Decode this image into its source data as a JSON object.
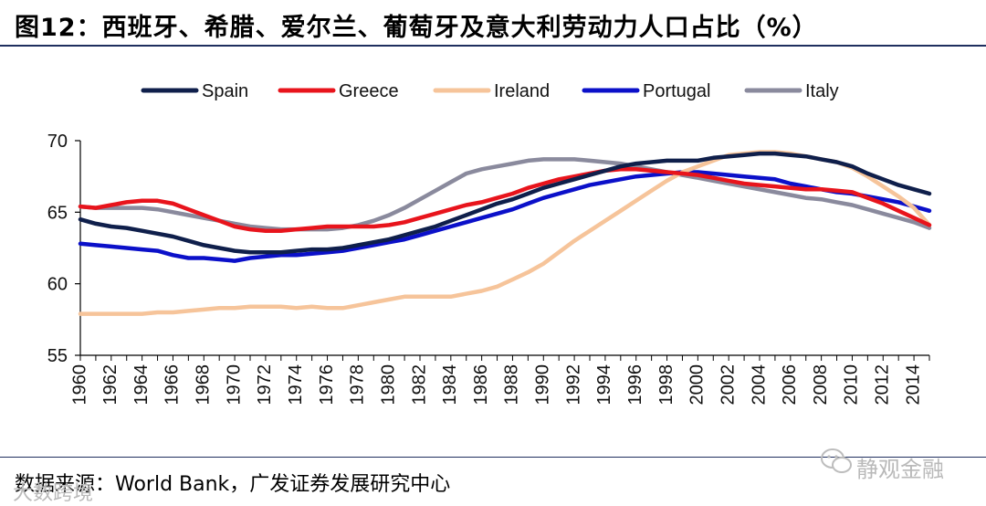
{
  "title": "图12：西班牙、希腊、爱尔兰、葡萄牙及意大利劳动力人口占比（%）",
  "source": "数据来源：World Bank，广发证券发展研究中心",
  "watermark_right": "静观金融",
  "watermark_left": "大数跨境",
  "chart_data": {
    "type": "line",
    "title": "",
    "xlabel": "",
    "ylabel": "",
    "ylim": [
      55,
      70
    ],
    "yticks": [
      55,
      60,
      65,
      70
    ],
    "x": [
      1960,
      1961,
      1962,
      1963,
      1964,
      1965,
      1966,
      1967,
      1968,
      1969,
      1970,
      1971,
      1972,
      1973,
      1974,
      1975,
      1976,
      1977,
      1978,
      1979,
      1980,
      1981,
      1982,
      1983,
      1984,
      1985,
      1986,
      1987,
      1988,
      1989,
      1990,
      1991,
      1992,
      1993,
      1994,
      1995,
      1996,
      1997,
      1998,
      1999,
      2000,
      2001,
      2002,
      2003,
      2004,
      2005,
      2006,
      2007,
      2008,
      2009,
      2010,
      2011,
      2012,
      2013,
      2014,
      2015
    ],
    "xticks": [
      1960,
      1962,
      1964,
      1966,
      1968,
      1970,
      1972,
      1974,
      1976,
      1978,
      1980,
      1982,
      1984,
      1986,
      1988,
      1990,
      1992,
      1994,
      1996,
      1998,
      2000,
      2002,
      2004,
      2006,
      2008,
      2010,
      2012,
      2014
    ],
    "legend_position": "top",
    "series": [
      {
        "name": "Spain",
        "color": "#0f1f4b",
        "values": [
          64.5,
          64.2,
          64.0,
          63.9,
          63.7,
          63.5,
          63.3,
          63.0,
          62.7,
          62.5,
          62.3,
          62.2,
          62.2,
          62.2,
          62.3,
          62.4,
          62.4,
          62.5,
          62.7,
          62.9,
          63.1,
          63.4,
          63.7,
          64.0,
          64.4,
          64.8,
          65.2,
          65.6,
          65.9,
          66.3,
          66.7,
          67.0,
          67.3,
          67.6,
          67.9,
          68.2,
          68.4,
          68.5,
          68.6,
          68.6,
          68.6,
          68.8,
          68.9,
          69.0,
          69.1,
          69.1,
          69.0,
          68.9,
          68.7,
          68.5,
          68.2,
          67.7,
          67.3,
          66.9,
          66.6,
          66.3
        ]
      },
      {
        "name": "Greece",
        "color": "#e8141c",
        "values": [
          65.4,
          65.3,
          65.5,
          65.7,
          65.8,
          65.8,
          65.6,
          65.2,
          64.8,
          64.4,
          64.0,
          63.8,
          63.7,
          63.7,
          63.8,
          63.9,
          64.0,
          64.0,
          64.0,
          64.0,
          64.1,
          64.3,
          64.6,
          64.9,
          65.2,
          65.5,
          65.7,
          66.0,
          66.3,
          66.7,
          67.0,
          67.3,
          67.5,
          67.7,
          67.9,
          68.0,
          68.0,
          67.9,
          67.8,
          67.7,
          67.6,
          67.4,
          67.2,
          67.0,
          66.9,
          66.8,
          66.7,
          66.6,
          66.6,
          66.5,
          66.4,
          66.0,
          65.6,
          65.1,
          64.6,
          64.1
        ]
      },
      {
        "name": "Ireland",
        "color": "#f6c49a",
        "values": [
          57.9,
          57.9,
          57.9,
          57.9,
          57.9,
          58.0,
          58.0,
          58.1,
          58.2,
          58.3,
          58.3,
          58.4,
          58.4,
          58.4,
          58.3,
          58.4,
          58.3,
          58.3,
          58.5,
          58.7,
          58.9,
          59.1,
          59.1,
          59.1,
          59.1,
          59.3,
          59.5,
          59.8,
          60.3,
          60.8,
          61.4,
          62.2,
          63.0,
          63.7,
          64.4,
          65.1,
          65.8,
          66.5,
          67.2,
          67.8,
          68.2,
          68.6,
          69.0,
          69.1,
          69.2,
          69.2,
          69.1,
          68.9,
          68.7,
          68.5,
          68.1,
          67.5,
          66.8,
          66.1,
          65.3,
          64.1
        ]
      },
      {
        "name": "Portugal",
        "color": "#0b10c9",
        "values": [
          62.8,
          62.7,
          62.6,
          62.5,
          62.4,
          62.3,
          62.0,
          61.8,
          61.8,
          61.7,
          61.6,
          61.8,
          61.9,
          62.0,
          62.0,
          62.1,
          62.2,
          62.3,
          62.5,
          62.7,
          62.9,
          63.1,
          63.4,
          63.7,
          64.0,
          64.3,
          64.6,
          64.9,
          65.2,
          65.6,
          66.0,
          66.3,
          66.6,
          66.9,
          67.1,
          67.3,
          67.5,
          67.6,
          67.7,
          67.8,
          67.8,
          67.7,
          67.6,
          67.5,
          67.4,
          67.3,
          67.0,
          66.8,
          66.6,
          66.4,
          66.3,
          66.1,
          65.9,
          65.7,
          65.4,
          65.1
        ]
      },
      {
        "name": "Italy",
        "color": "#8a8a9d",
        "values": [
          65.4,
          65.3,
          65.3,
          65.3,
          65.3,
          65.2,
          65.0,
          64.8,
          64.6,
          64.4,
          64.2,
          64.0,
          63.9,
          63.8,
          63.8,
          63.8,
          63.8,
          63.9,
          64.1,
          64.4,
          64.8,
          65.3,
          65.9,
          66.5,
          67.1,
          67.7,
          68.0,
          68.2,
          68.4,
          68.6,
          68.7,
          68.7,
          68.7,
          68.6,
          68.5,
          68.4,
          68.2,
          68.0,
          67.8,
          67.6,
          67.4,
          67.2,
          67.0,
          66.8,
          66.6,
          66.4,
          66.2,
          66.0,
          65.9,
          65.7,
          65.5,
          65.2,
          64.9,
          64.6,
          64.3,
          63.9
        ]
      }
    ]
  }
}
